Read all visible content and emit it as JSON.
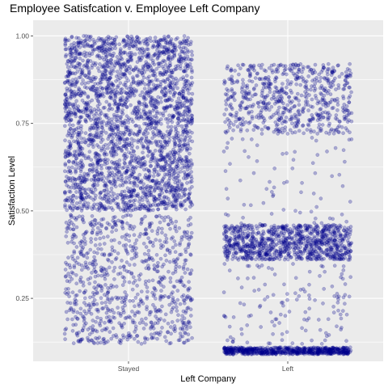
{
  "chart_data": {
    "type": "scatter",
    "jitter": true,
    "title": "Employee Satisfcation v. Employee Left Company",
    "xlabel": "Left Company",
    "ylabel": "Satisfaction Level",
    "categories": [
      "Stayed",
      "Left"
    ],
    "ylim": [
      0.07,
      1.045
    ],
    "yticks": [
      0.25,
      0.5,
      0.75,
      1.0
    ],
    "ytick_labels": [
      "0.25",
      "0.50",
      "0.75",
      "1.00"
    ],
    "grid": true,
    "legend": "none",
    "colors": {
      "point": "#00008B",
      "panel": "#EBEBEB",
      "grid": "#FFFFFF"
    },
    "series": [
      {
        "category": "Stayed",
        "distribution": [
          {
            "range": [
              0.5,
              1.0
            ],
            "count": 2600
          },
          {
            "range": [
              0.12,
              0.49
            ],
            "count": 850
          }
        ]
      },
      {
        "category": "Left",
        "distribution": [
          {
            "range": [
              0.72,
              0.92
            ],
            "count": 650
          },
          {
            "range": [
              0.46,
              0.71
            ],
            "count": 70
          },
          {
            "range": [
              0.36,
              0.46
            ],
            "count": 900
          },
          {
            "range": [
              0.12,
              0.35
            ],
            "count": 130
          },
          {
            "range": [
              0.09,
              0.11
            ],
            "count": 650
          }
        ]
      }
    ]
  }
}
